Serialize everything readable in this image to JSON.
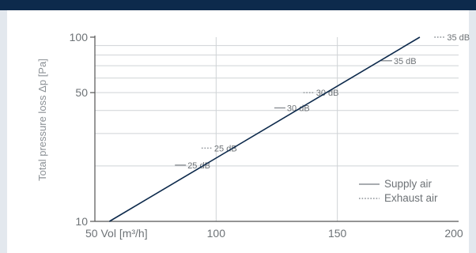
{
  "chart_data": {
    "type": "line",
    "scale": {
      "x": "linear",
      "y": "log"
    },
    "xlim": [
      50,
      200
    ],
    "ylim": [
      10,
      100
    ],
    "x_ticks": [
      {
        "value": 50,
        "label": "50"
      },
      {
        "value": 100,
        "label": "100"
      },
      {
        "value": 150,
        "label": "150"
      },
      {
        "value": 200,
        "label": "200"
      }
    ],
    "x_unit_label": "Vol [m³/h]",
    "y_ticks": [
      {
        "value": 10,
        "label": "10"
      },
      {
        "value": 50,
        "label": "50"
      },
      {
        "value": 100,
        "label": "100"
      }
    ],
    "ylabel": "Total pressure loss Δp [Pa]",
    "grid": true,
    "series": [
      {
        "name": "Supply air",
        "style": "solid",
        "x": [
          56,
          184
        ],
        "y": [
          10,
          100
        ]
      }
    ],
    "annotations": [
      {
        "series": "Supply air",
        "x": 83,
        "y": 20.2,
        "text": "25 dB"
      },
      {
        "series": "Exhaust air",
        "x": 94,
        "y": 25,
        "text": "25 dB"
      },
      {
        "series": "Supply air",
        "x": 124,
        "y": 41.3,
        "text": "30 dB"
      },
      {
        "series": "Exhaust air",
        "x": 136,
        "y": 50,
        "text": "30 dB"
      },
      {
        "series": "Supply air",
        "x": 168,
        "y": 74.5,
        "text": "35 dB"
      },
      {
        "series": "Exhaust air",
        "x": 190,
        "y": 100,
        "text": "35 dB"
      }
    ],
    "legend": {
      "position": "bottom-right",
      "items": [
        {
          "label": "Supply air",
          "style": "solid"
        },
        {
          "label": "Exhaust air",
          "style": "dotted"
        }
      ]
    },
    "colors": {
      "line": "#0d2a4c",
      "axis": "#555555",
      "grid": "#cfd3d6",
      "marker": "#8c9196",
      "text": "#6d7276"
    }
  }
}
